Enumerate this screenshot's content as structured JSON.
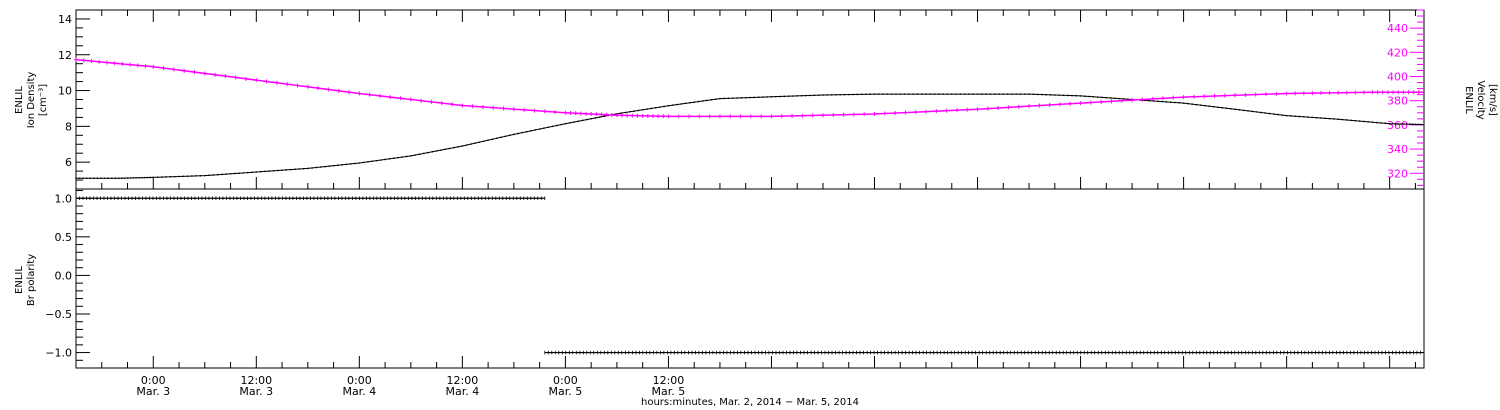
{
  "chart_data": [
    {
      "type": "line",
      "panel": "top",
      "x_unit": "hours since Mar. 2, 2014 00:00",
      "left_axis": {
        "label_lines": [
          "ENLIL",
          "Ion Density",
          "[cm⁻³]"
        ],
        "ylim": [
          4.5,
          14.5
        ],
        "ticks": [
          6,
          8,
          10,
          12,
          14
        ],
        "color": "#000000"
      },
      "right_axis": {
        "label_lines": [
          "ENLIL",
          "Velocity",
          "[km/s]"
        ],
        "ylim": [
          307,
          455
        ],
        "ticks": [
          320,
          340,
          360,
          380,
          400,
          420,
          440
        ],
        "color": "#ff00ff"
      },
      "series": [
        {
          "axis": "left",
          "color": "#000000",
          "x": [
            15,
            20,
            24,
            30,
            36,
            42,
            48,
            54,
            60,
            66,
            72,
            78,
            84,
            90,
            96,
            102,
            108,
            114,
            120,
            126,
            132,
            138,
            144,
            150,
            156,
            162,
            168,
            172
          ],
          "y": [
            5.1,
            5.1,
            5.15,
            5.25,
            5.45,
            5.65,
            5.95,
            6.35,
            6.9,
            7.55,
            8.15,
            8.7,
            9.15,
            9.55,
            9.65,
            9.75,
            9.8,
            9.8,
            9.8,
            9.8,
            9.7,
            9.5,
            9.3,
            8.95,
            8.6,
            8.4,
            8.15,
            8.1
          ]
        },
        {
          "axis": "right",
          "color": "#ff00ff",
          "x": [
            15,
            24,
            36,
            48,
            60,
            72,
            78,
            84,
            96,
            108,
            120,
            132,
            144,
            156,
            166,
            172
          ],
          "y": [
            414,
            408,
            397,
            386,
            376,
            370,
            368,
            367,
            367,
            369,
            373,
            378,
            383,
            386,
            387,
            387
          ]
        }
      ]
    },
    {
      "type": "scatter",
      "panel": "bottom",
      "axis_label_lines": [
        "ENLIL",
        "Br polarity"
      ],
      "ylim": [
        -1.2,
        1.12
      ],
      "ticks": [
        "1.0",
        "0.5",
        "0.0",
        "−0.5",
        "−1.0"
      ],
      "tick_values": [
        1,
        0.5,
        0,
        -0.5,
        -1
      ],
      "color": "#000000",
      "series": [
        {
          "x_start": 15,
          "x_end": 69.6,
          "y": 1.0
        },
        {
          "x_start": 69.6,
          "x_end": 172,
          "y": -1.0
        }
      ]
    }
  ],
  "x_axis": {
    "xlim": [
      15,
      172
    ],
    "ticks": [
      {
        "x": 24,
        "time": "0:00",
        "date": "Mar. 3"
      },
      {
        "x": 36,
        "time": "12:00",
        "date": "Mar. 3"
      },
      {
        "x": 48,
        "time": "0:00",
        "date": "Mar. 4"
      },
      {
        "x": 60,
        "time": "12:00",
        "date": "Mar. 4"
      },
      {
        "x": 72,
        "time": "0:00",
        "date": "Mar. 5"
      },
      {
        "x": 84,
        "time": "12:00",
        "date": "Mar. 5"
      }
    ],
    "title": "hours:minutes, Mar.  2, 2014 − Mar.  5, 2014"
  }
}
